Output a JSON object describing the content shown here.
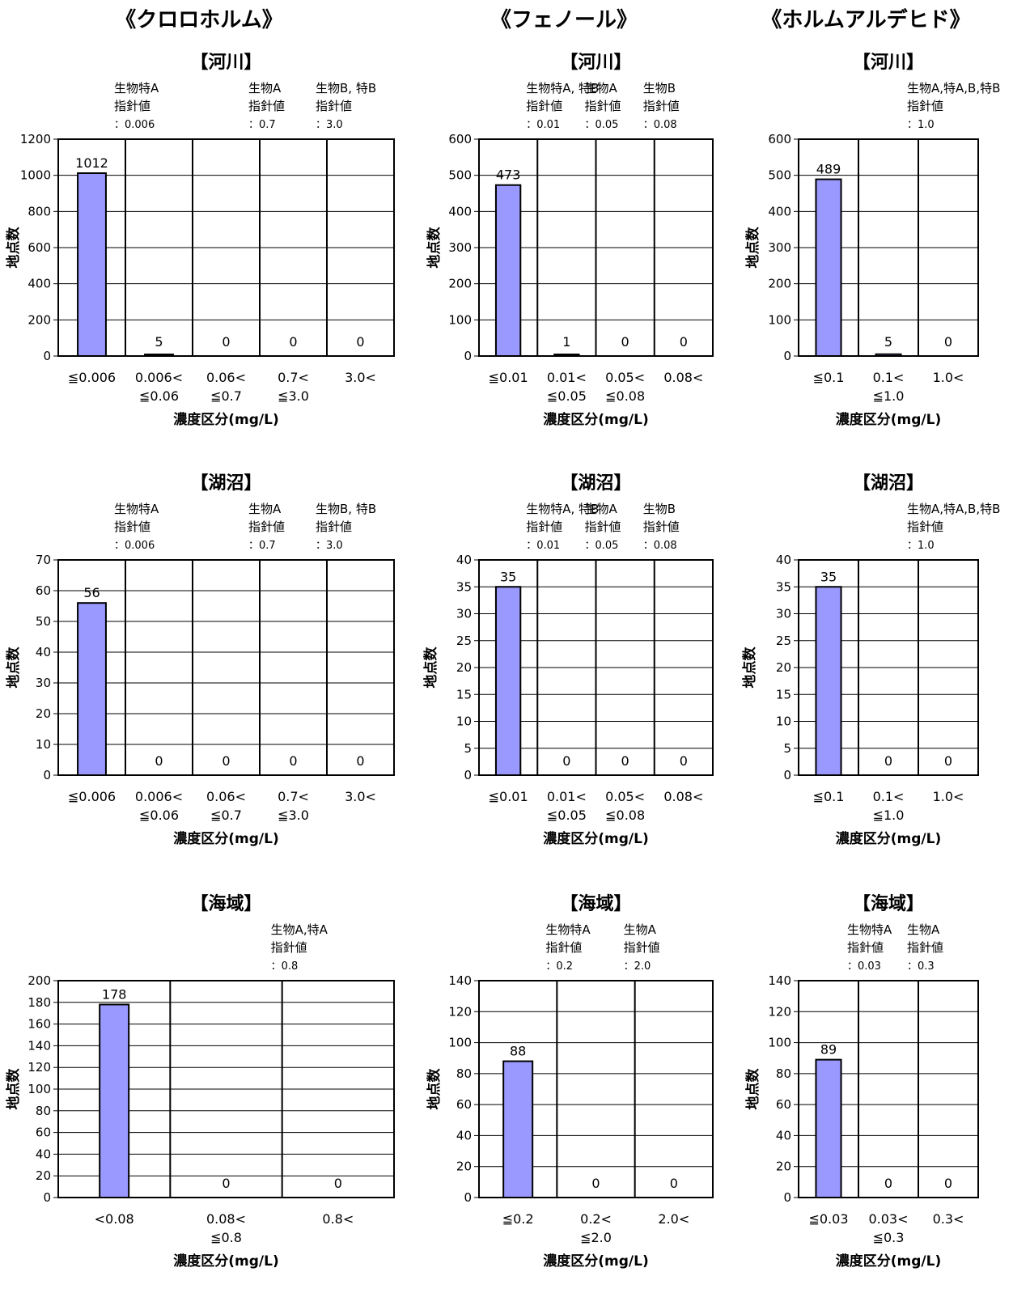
{
  "columns": [
    {
      "title": "《クロロホルム》"
    },
    {
      "title": "《フェノール》"
    },
    {
      "title": "《ホルムアルデヒド》"
    }
  ],
  "colors": {
    "bar": "#9999ff",
    "bar_edge": "#000000",
    "grid": "#000000"
  },
  "chart_data": [
    {
      "id": "chloroform-river",
      "type": "bar",
      "title": "【河川】",
      "xlabel": "濃度区分(mg/L)",
      "ylabel": "地点数",
      "categories": [
        "≦0.006",
        "0.006<\n≦0.06",
        "0.06<\n≦0.7",
        "0.7<\n≦3.0",
        "3.0<"
      ],
      "values": [
        1012,
        5,
        0,
        0,
        0
      ],
      "ylim": [
        0,
        1200
      ],
      "ystep": 200,
      "guidelines": [
        {
          "after": 0,
          "text": [
            "生物特A",
            "指針値",
            "：0.006"
          ]
        },
        {
          "after": 2,
          "text": [
            "生物A",
            "指針値",
            "：0.7"
          ]
        },
        {
          "after": 3,
          "text": [
            "生物B, 特B",
            "指針値",
            "：3.0"
          ]
        }
      ]
    },
    {
      "id": "chloroform-lake",
      "type": "bar",
      "title": "【湖沼】",
      "xlabel": "濃度区分(mg/L)",
      "ylabel": "地点数",
      "categories": [
        "≦0.006",
        "0.006<\n≦0.06",
        "0.06<\n≦0.7",
        "0.7<\n≦3.0",
        "3.0<"
      ],
      "values": [
        56,
        0,
        0,
        0,
        0
      ],
      "ylim": [
        0,
        70
      ],
      "ystep": 10,
      "guidelines": [
        {
          "after": 0,
          "text": [
            "生物特A",
            "指針値",
            "：0.006"
          ]
        },
        {
          "after": 2,
          "text": [
            "生物A",
            "指針値",
            "：0.7"
          ]
        },
        {
          "after": 3,
          "text": [
            "生物B, 特B",
            "指針値",
            "：3.0"
          ]
        }
      ]
    },
    {
      "id": "chloroform-sea",
      "type": "bar",
      "title": "【海域】",
      "xlabel": "濃度区分(mg/L)",
      "ylabel": "地点数",
      "categories": [
        "<0.08",
        "0.08<\n≦0.8",
        "0.8<"
      ],
      "values": [
        178,
        0,
        0
      ],
      "ylim": [
        0,
        200
      ],
      "ystep": 20,
      "guidelines": [
        {
          "after": 1,
          "text": [
            "生物A,特A",
            "指針値",
            "：0.8"
          ]
        }
      ]
    },
    {
      "id": "phenol-river",
      "type": "bar",
      "title": "【河川】",
      "xlabel": "濃度区分(mg/L)",
      "ylabel": "地点数",
      "categories": [
        "≦0.01",
        "0.01<\n≦0.05",
        "0.05<\n≦0.08",
        "0.08<"
      ],
      "values": [
        473,
        1,
        0,
        0
      ],
      "ylim": [
        0,
        600
      ],
      "ystep": 100,
      "guidelines": [
        {
          "after": 0,
          "text": [
            "生物特A, 特B",
            "指針値",
            "：0.01"
          ]
        },
        {
          "after": 1,
          "text": [
            "生物A",
            "指針値",
            "：0.05"
          ]
        },
        {
          "after": 2,
          "text": [
            "生物B",
            "指針値",
            "：0.08"
          ]
        }
      ]
    },
    {
      "id": "phenol-lake",
      "type": "bar",
      "title": "【湖沼】",
      "xlabel": "濃度区分(mg/L)",
      "ylabel": "地点数",
      "categories": [
        "≦0.01",
        "0.01<\n≦0.05",
        "0.05<\n≦0.08",
        "0.08<"
      ],
      "values": [
        35,
        0,
        0,
        0
      ],
      "ylim": [
        0,
        40
      ],
      "ystep": 5,
      "guidelines": [
        {
          "after": 0,
          "text": [
            "生物特A, 特B",
            "指針値",
            "：0.01"
          ]
        },
        {
          "after": 1,
          "text": [
            "生物A",
            "指針値",
            "：0.05"
          ]
        },
        {
          "after": 2,
          "text": [
            "生物B",
            "指針値",
            "：0.08"
          ]
        }
      ]
    },
    {
      "id": "phenol-sea",
      "type": "bar",
      "title": "【海域】",
      "xlabel": "濃度区分(mg/L)",
      "ylabel": "地点数",
      "categories": [
        "≦0.2",
        "0.2<\n≦2.0",
        "2.0<"
      ],
      "values": [
        88,
        0,
        0
      ],
      "ylim": [
        0,
        140
      ],
      "ystep": 20,
      "guidelines": [
        {
          "after": 0,
          "text": [
            "生物特A",
            "指針値",
            "：0.2"
          ]
        },
        {
          "after": 1,
          "text": [
            "生物A",
            "指針値",
            "：2.0"
          ]
        }
      ]
    },
    {
      "id": "formaldehyde-river",
      "type": "bar",
      "title": "【河川】",
      "xlabel": "濃度区分(mg/L)",
      "ylabel": "地点数",
      "categories": [
        "≦0.1",
        "0.1<\n≦1.0",
        "1.0<"
      ],
      "values": [
        489,
        5,
        0
      ],
      "ylim": [
        0,
        600
      ],
      "ystep": 100,
      "guidelines": [
        {
          "after": 1,
          "text": [
            "生物A,特A,B,特B",
            "指針値",
            "：1.0"
          ]
        }
      ]
    },
    {
      "id": "formaldehyde-lake",
      "type": "bar",
      "title": "【湖沼】",
      "xlabel": "濃度区分(mg/L)",
      "ylabel": "地点数",
      "categories": [
        "≦0.1",
        "0.1<\n≦1.0",
        "1.0<"
      ],
      "values": [
        35,
        0,
        0
      ],
      "ylim": [
        0,
        40
      ],
      "ystep": 5,
      "guidelines": [
        {
          "after": 1,
          "text": [
            "生物A,特A,B,特B",
            "指針値",
            "：1.0"
          ]
        }
      ]
    },
    {
      "id": "formaldehyde-sea",
      "type": "bar",
      "title": "【海域】",
      "xlabel": "濃度区分(mg/L)",
      "ylabel": "地点数",
      "categories": [
        "≦0.03",
        "0.03<\n≦0.3",
        "0.3<"
      ],
      "values": [
        89,
        0,
        0
      ],
      "ylim": [
        0,
        140
      ],
      "ystep": 20,
      "guidelines": [
        {
          "after": 0,
          "text": [
            "生物特A",
            "指針値",
            "：0.03"
          ]
        },
        {
          "after": 1,
          "text": [
            "生物A",
            "指針値",
            "：0.3"
          ]
        }
      ]
    }
  ]
}
